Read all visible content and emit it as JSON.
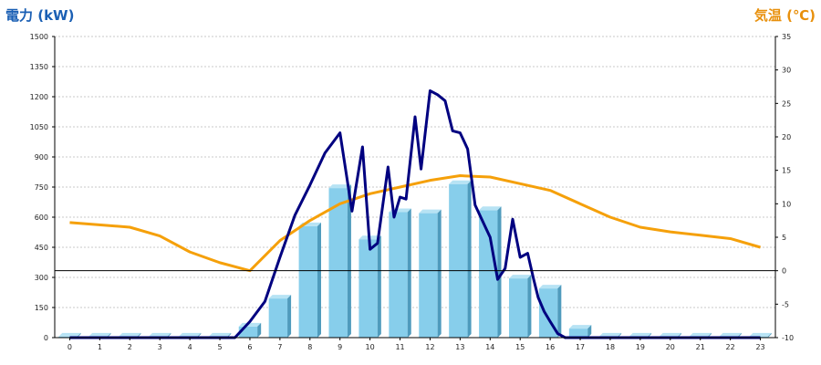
{
  "chart_data": {
    "type": "bar",
    "left_axis_title": "電力 (kW)",
    "right_axis_title": "気温 (℃)",
    "categories": [
      "0",
      "1",
      "2",
      "3",
      "4",
      "5",
      "6",
      "7",
      "8",
      "9",
      "10",
      "11",
      "12",
      "13",
      "14",
      "15",
      "16",
      "17",
      "18",
      "19",
      "20",
      "21",
      "22",
      "23"
    ],
    "left_ylim": [
      0,
      1500
    ],
    "left_ticks": [
      "0",
      "150",
      "300",
      "450",
      "600",
      "750",
      "900",
      "1050",
      "1200",
      "1350",
      "1500"
    ],
    "right_ylim": [
      -10,
      35
    ],
    "right_ticks": [
      "-10",
      "-5",
      "0",
      "5",
      "10",
      "15",
      "20",
      "25",
      "30",
      "35"
    ],
    "grid": true,
    "bar_series": {
      "values": [
        5,
        5,
        5,
        5,
        5,
        5,
        55,
        195,
        555,
        745,
        490,
        625,
        620,
        765,
        635,
        295,
        245,
        45,
        5,
        5,
        5,
        5,
        5,
        5
      ],
      "color": "#87ceeb"
    },
    "power_line": {
      "color": "#000080",
      "x": [
        0,
        5,
        5.5,
        6,
        6.5,
        7,
        7.5,
        8,
        8.5,
        9,
        9.4,
        9.75,
        10,
        10.25,
        10.6,
        10.8,
        11,
        11.2,
        11.5,
        11.7,
        12,
        12.25,
        12.5,
        12.75,
        13,
        13.25,
        13.5,
        13.75,
        14,
        14.25,
        14.5,
        14.75,
        15,
        15.25,
        15.45,
        15.6,
        15.8,
        16,
        16.25,
        16.5,
        16.75,
        17,
        17.5,
        18,
        23
      ],
      "y": [
        0,
        0,
        0,
        80,
        180,
        400,
        610,
        760,
        920,
        1020,
        630,
        950,
        440,
        470,
        850,
        600,
        700,
        690,
        1100,
        840,
        1230,
        1210,
        1180,
        1030,
        1020,
        940,
        660,
        580,
        500,
        290,
        345,
        590,
        400,
        420,
        290,
        200,
        130,
        80,
        20,
        0,
        0,
        0,
        0,
        0,
        0
      ]
    },
    "temperature_line": {
      "color": "#f5a00a",
      "x": [
        0,
        2,
        3,
        4,
        5,
        6,
        7,
        8,
        9,
        10,
        11,
        12,
        13,
        14,
        15,
        16,
        17,
        18,
        19,
        20,
        21,
        22,
        23
      ],
      "y": [
        7.2,
        6.5,
        5.2,
        2.8,
        1.2,
        0,
        4.5,
        7.5,
        10,
        11.5,
        12.5,
        13.5,
        14.2,
        14,
        13,
        12,
        10,
        8,
        6.5,
        5.8,
        5.3,
        4.8,
        3.5
      ]
    }
  }
}
